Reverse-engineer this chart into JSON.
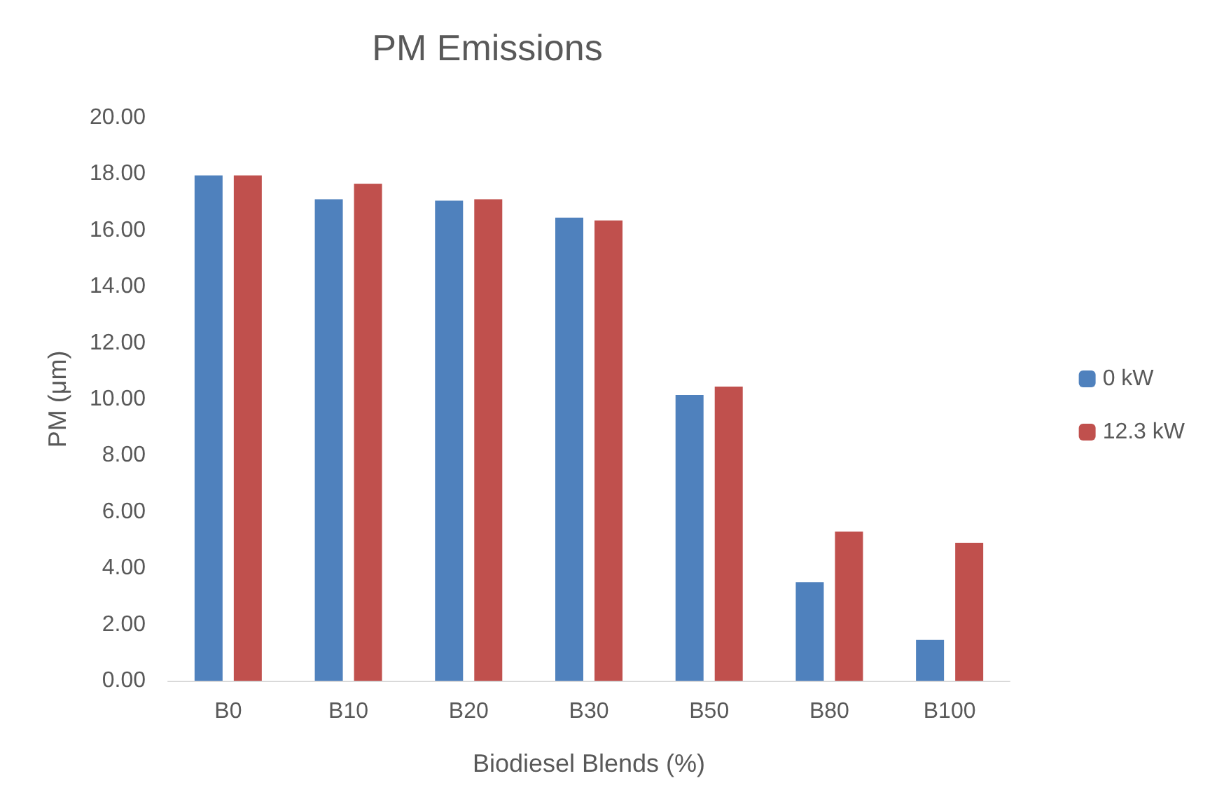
{
  "chart_data": {
    "type": "bar",
    "title": "PM Emissions",
    "xlabel": "Biodiesel Blends (%)",
    "ylabel": "PM (μm)",
    "categories": [
      "B0",
      "B10",
      "B20",
      "B30",
      "B50",
      "B80",
      "B100"
    ],
    "series": [
      {
        "name": "0 kW",
        "color": "#4f81bd",
        "values": [
          17.95,
          17.1,
          17.05,
          16.45,
          10.15,
          3.5,
          1.45
        ]
      },
      {
        "name": "12.3 kW",
        "color": "#c0504d",
        "values": [
          17.95,
          17.65,
          17.1,
          16.35,
          10.45,
          5.3,
          4.9
        ]
      }
    ],
    "ylim": [
      0,
      20
    ],
    "yticks": [
      {
        "value": 0,
        "label": "0.00"
      },
      {
        "value": 2,
        "label": "2.00"
      },
      {
        "value": 4,
        "label": "4.00"
      },
      {
        "value": 6,
        "label": "6.00"
      },
      {
        "value": 8,
        "label": "8.00"
      },
      {
        "value": 10,
        "label": "10.00"
      },
      {
        "value": 12,
        "label": "12.00"
      },
      {
        "value": 14,
        "label": "14.00"
      },
      {
        "value": 16,
        "label": "16.00"
      },
      {
        "value": 18,
        "label": "18.00"
      },
      {
        "value": 20,
        "label": "20.00"
      }
    ],
    "grid": false,
    "legend": "right"
  }
}
